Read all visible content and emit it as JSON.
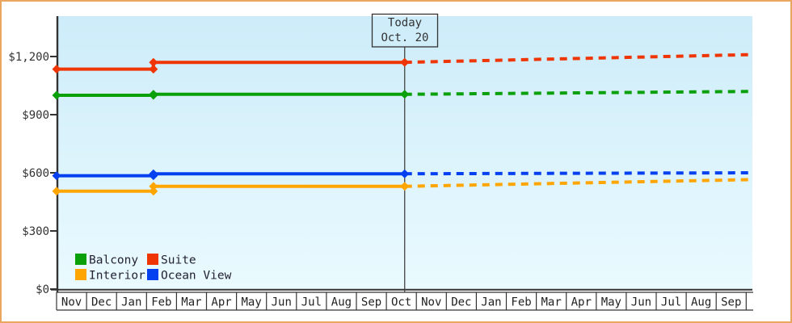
{
  "colors": {
    "frame_border": "#e8a65f",
    "plot_bg_top": "#cdecf9",
    "plot_bg_bottom": "#eafaff",
    "axis": "#333333",
    "today_line": "#444444",
    "text": "#333333"
  },
  "chart_data": {
    "type": "line",
    "title": "",
    "y_axis": {
      "tick_labels": [
        "$0",
        "$300",
        "$600",
        "$900",
        "$1,200"
      ],
      "tick_values": [
        0,
        300,
        600,
        900,
        1200
      ],
      "value_range": [
        0,
        1408
      ]
    },
    "x_axis": {
      "month_labels": [
        "Nov",
        "Dec",
        "Jan",
        "Feb",
        "Mar",
        "Apr",
        "May",
        "Jun",
        "Jul",
        "Aug",
        "Sep",
        "Oct",
        "Nov",
        "Dec",
        "Jan",
        "Feb",
        "Mar",
        "Apr",
        "May",
        "Jun",
        "Jul",
        "Aug",
        "Sep"
      ]
    },
    "today_marker": {
      "line1": "Today",
      "line2": "Oct. 20",
      "month_position": 11.61
    },
    "series": [
      {
        "name": "Balcony",
        "color": "#0aa00a",
        "actual": [
          [
            0,
            1000
          ],
          [
            3.23,
            1000
          ],
          [
            3.23,
            1005
          ],
          [
            11.61,
            1005
          ]
        ],
        "forecast": [
          [
            11.61,
            1005
          ],
          [
            23.2,
            1020
          ]
        ]
      },
      {
        "name": "Suite",
        "color": "#f03505",
        "actual": [
          [
            0,
            1135
          ],
          [
            3.23,
            1135
          ],
          [
            3.23,
            1170
          ],
          [
            11.61,
            1170
          ]
        ],
        "forecast": [
          [
            11.61,
            1170
          ],
          [
            23.2,
            1210
          ]
        ]
      },
      {
        "name": "Interior",
        "color": "#ffa500",
        "actual": [
          [
            0,
            505
          ],
          [
            3.23,
            505
          ],
          [
            3.23,
            530
          ],
          [
            11.61,
            530
          ]
        ],
        "forecast": [
          [
            11.61,
            530
          ],
          [
            23.2,
            565
          ]
        ]
      },
      {
        "name": "Ocean View",
        "color": "#0440f0",
        "actual": [
          [
            0,
            585
          ],
          [
            3.23,
            585
          ],
          [
            3.23,
            595
          ],
          [
            11.61,
            595
          ]
        ],
        "forecast": [
          [
            11.61,
            595
          ],
          [
            23.2,
            600
          ]
        ]
      }
    ],
    "legend": [
      {
        "label": "Balcony",
        "color": "#0aa00a"
      },
      {
        "label": "Suite",
        "color": "#f03505"
      },
      {
        "label": "Interior",
        "color": "#ffa500"
      },
      {
        "label": "Ocean View",
        "color": "#0440f0"
      }
    ]
  }
}
